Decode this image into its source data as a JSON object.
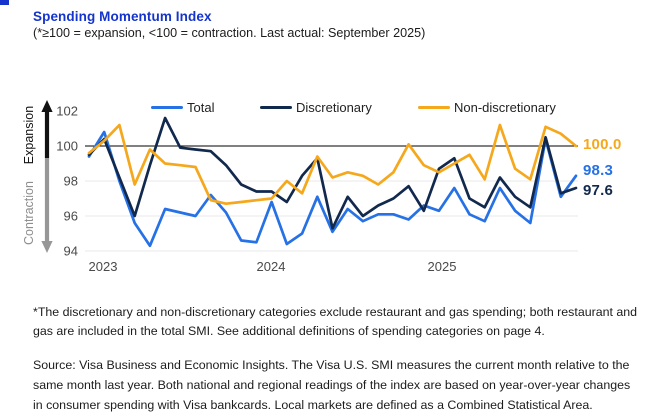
{
  "page": {
    "title": "Spending Momentum Index",
    "subtitle": "(*≥100 = expansion, <100 = contraction. Last actual: September 2025)",
    "footnote": "*The discretionary and non-discretionary categories exclude restaurant and gas spending; both restaurant and gas are included in the total SMI. See additional definitions of spending categories on page 4.",
    "source": "Source: Visa Business and Economic Insights. The Visa U.S. SMI measures the current month relative to the same month last year. Both national and regional readings of the index are based on year-over-year changes in consumer spending with Visa bankcards. Local markets are defined as a Combined Statistical Area."
  },
  "colors": {
    "title_blue": "#1434cb",
    "total": "#2671e5",
    "discretionary": "#12294e",
    "nondiscretionary": "#f5a81c",
    "expansion_black": "#111111",
    "contraction_gray": "#979797",
    "gridline": "#e9e9e9",
    "baseline": "#000000"
  },
  "chart_data": {
    "type": "line",
    "title": "Spending Momentum Index",
    "x": [
      "2023-01",
      "2023-02",
      "2023-03",
      "2023-04",
      "2023-05",
      "2023-06",
      "2023-07",
      "2023-08",
      "2023-09",
      "2023-10",
      "2023-11",
      "2023-12",
      "2024-01",
      "2024-02",
      "2024-03",
      "2024-04",
      "2024-05",
      "2024-06",
      "2024-07",
      "2024-08",
      "2024-09",
      "2024-10",
      "2024-11",
      "2024-12",
      "2025-01",
      "2025-02",
      "2025-03",
      "2025-04",
      "2025-05",
      "2025-06",
      "2025-07",
      "2025-08",
      "2025-09"
    ],
    "series": [
      {
        "name": "Total",
        "color": "#2671e5",
        "values": [
          99.4,
          100.8,
          98.0,
          95.6,
          94.3,
          96.4,
          96.2,
          96.0,
          97.2,
          96.2,
          94.6,
          94.5,
          96.8,
          94.4,
          95.0,
          97.1,
          95.1,
          96.4,
          95.7,
          96.1,
          96.1,
          95.8,
          96.6,
          96.3,
          97.6,
          96.1,
          95.7,
          97.6,
          96.3,
          95.6,
          100.4,
          97.1,
          98.3
        ]
      },
      {
        "name": "Discretionary",
        "color": "#12294e",
        "values": [
          99.5,
          100.4,
          98.2,
          96.0,
          98.9,
          101.6,
          99.9,
          99.8,
          99.7,
          98.9,
          97.8,
          97.4,
          97.4,
          96.8,
          98.3,
          99.3,
          95.3,
          97.1,
          96.0,
          96.6,
          97.0,
          97.7,
          96.3,
          98.7,
          99.3,
          97.0,
          96.5,
          98.2,
          97.1,
          96.5,
          100.5,
          97.3,
          97.6
        ]
      },
      {
        "name": "Non-discretionary",
        "color": "#f5a81c",
        "values": [
          99.6,
          100.3,
          101.2,
          97.8,
          99.8,
          99.0,
          98.9,
          98.8,
          96.9,
          96.7,
          96.8,
          96.9,
          97.0,
          98.0,
          97.3,
          99.4,
          98.2,
          98.5,
          98.3,
          97.8,
          98.5,
          100.1,
          98.9,
          98.5,
          99.0,
          99.5,
          98.1,
          101.2,
          98.7,
          98.1,
          101.1,
          100.7,
          100.0
        ]
      }
    ],
    "y_ticks": [
      102,
      100,
      98,
      96,
      94
    ],
    "ylim": [
      93.6,
      102.5
    ],
    "baseline": 100,
    "grid": "horizontal-light",
    "legend_position": "top",
    "x_year_labels": [
      "2023",
      "2024",
      "2025"
    ],
    "axis_annotations": {
      "up": "Expansion",
      "down": "Contraction"
    },
    "end_labels": [
      {
        "series": "Non-discretionary",
        "text": "100.0"
      },
      {
        "series": "Total",
        "text": "98.3"
      },
      {
        "series": "Discretionary",
        "text": "97.6"
      }
    ]
  }
}
